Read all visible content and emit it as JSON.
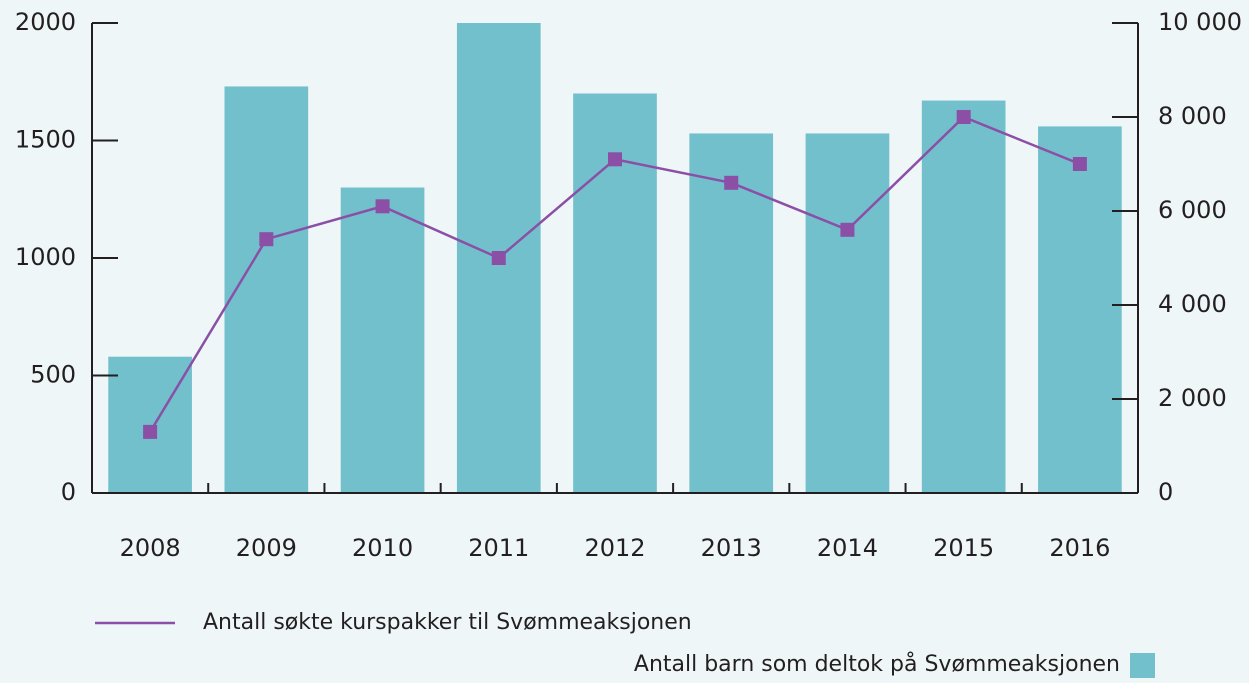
{
  "chart_data": {
    "type": "bar",
    "categories": [
      "2008",
      "2009",
      "2010",
      "2011",
      "2012",
      "2013",
      "2014",
      "2015",
      "2016"
    ],
    "series": [
      {
        "name": "Antall barn som deltok på Svømmeaksjonen",
        "type": "bar",
        "color": "#72c0cc",
        "values": [
          580,
          1730,
          1300,
          2000,
          1700,
          1530,
          1530,
          1670,
          1560
        ]
      },
      {
        "name": "Antall søkte kurspakker til Svømmeaksjonen",
        "type": "line",
        "axis": "y2",
        "color": "#8b4fa6",
        "values": [
          1300,
          5400,
          6100,
          5000,
          7100,
          6600,
          5600,
          8000,
          7000
        ]
      }
    ],
    "ylim": [
      0,
      2000
    ],
    "yticks": [
      0,
      500,
      1000,
      1500,
      2000
    ],
    "y2lim": [
      0,
      10000
    ],
    "y2ticks": [
      0,
      {
        "value": 2000,
        "label": "2 000"
      },
      {
        "value": 4000,
        "label": "4 000"
      },
      {
        "value": 6000,
        "label": "6 000"
      },
      {
        "value": 8000,
        "label": "8 000"
      },
      {
        "value": 10000,
        "label": "10 000"
      }
    ],
    "grid": false
  }
}
